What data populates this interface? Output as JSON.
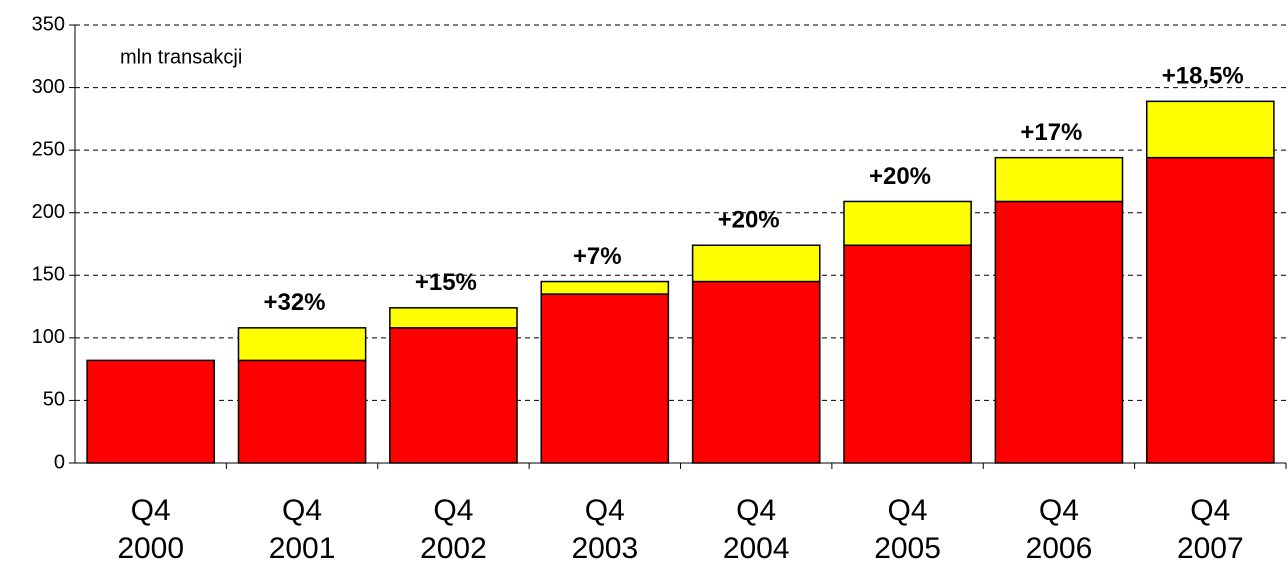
{
  "chart_data": {
    "type": "stacked-bar",
    "unit_label": "mln transakcji",
    "categories": [
      "Q4\n2000",
      "Q4\n2001",
      "Q4\n2002",
      "Q4\n2003",
      "Q4\n2004",
      "Q4\n2005",
      "Q4\n2006",
      "Q4\n2007"
    ],
    "series": [
      {
        "color": "#ff0000",
        "values": [
          82,
          82,
          108,
          135,
          145,
          174,
          209,
          244
        ]
      },
      {
        "color": "#ffff00",
        "values": [
          0,
          26,
          16,
          10,
          29,
          35,
          35,
          45
        ]
      }
    ],
    "annotations": [
      null,
      "+32%",
      "+15%",
      "+7%",
      "+20%",
      "+20%",
      "+17%",
      "+18,5%"
    ],
    "ylim": [
      0,
      350
    ],
    "yticks": [
      0,
      50,
      100,
      150,
      200,
      250,
      300,
      350
    ],
    "grid": true
  }
}
